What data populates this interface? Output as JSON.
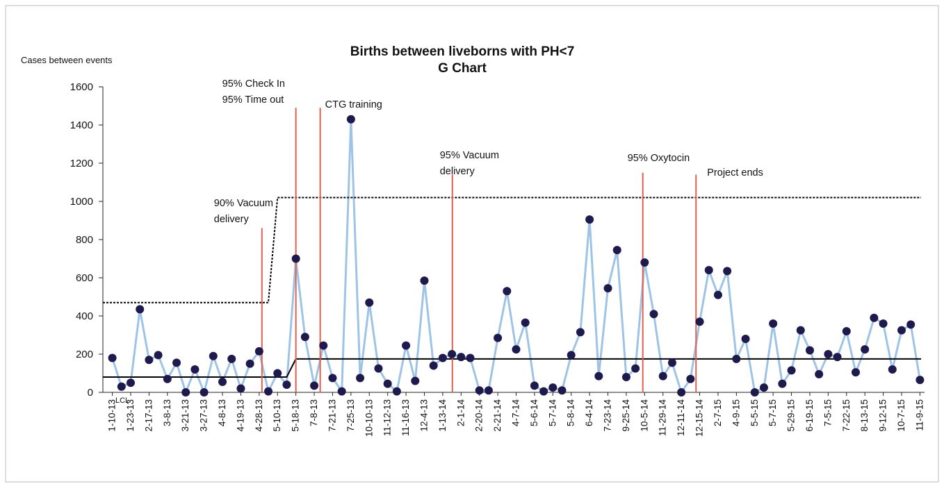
{
  "chart_data": {
    "type": "line",
    "title": [
      "Births between liveborns with PH<7",
      "G Chart"
    ],
    "y_axis_label": "Cases between events",
    "categories": [
      "1-10-13",
      null,
      "1-23-13",
      null,
      "2-17-13",
      null,
      "3-8-13",
      null,
      "3-21-13",
      null,
      "3-27-13",
      null,
      "4-8-13",
      null,
      "4-19-13",
      null,
      "4-28-13",
      null,
      "5-10-13",
      null,
      "5-18-13",
      null,
      "7-8-13",
      null,
      "7-21-13",
      null,
      "7-25-13",
      null,
      "10-10-13",
      null,
      "11-12-13",
      null,
      "11-16-13",
      null,
      "12-4-13",
      null,
      "1-13-14",
      null,
      "2-1-14",
      null,
      "2-20-14",
      null,
      "2-21-14",
      null,
      "4-7-14",
      null,
      "5-6-14",
      null,
      "5-7-14",
      null,
      "5-8-14",
      null,
      "6-4-14",
      null,
      "7-23-14",
      null,
      "9-25-14",
      null,
      "10-5-14",
      null,
      "11-29-14",
      null,
      "12-11-14",
      null,
      "12-15-14",
      null,
      "2-7-15",
      null,
      "4-9-15",
      null,
      "5-5-15",
      null,
      "5-7-15",
      null,
      "5-29-15",
      null,
      "6-19-15",
      null,
      "7-5-15",
      null,
      "7-22-15",
      null,
      "8-13-15",
      null,
      "9-12-15",
      null,
      "10-7-15",
      null,
      "11-9-15"
    ],
    "series": [
      {
        "color": "#9dc3e6",
        "marker_color": "#1f1a4d",
        "style": "markers",
        "values": [
          180,
          30,
          50,
          435,
          170,
          195,
          70,
          155,
          0,
          120,
          0,
          190,
          55,
          175,
          20,
          150,
          215,
          5,
          100,
          40,
          700,
          290,
          35,
          245,
          75,
          5,
          1430,
          75,
          470,
          125,
          45,
          5,
          245,
          60,
          585,
          140,
          180,
          200,
          185,
          180,
          10,
          10,
          285,
          530,
          225,
          365,
          35,
          5,
          25,
          10,
          195,
          315,
          905,
          85,
          545,
          745,
          80,
          125,
          680,
          410,
          85,
          155,
          0,
          70,
          370,
          640,
          510,
          635,
          175,
          280,
          0,
          25,
          360,
          45,
          115,
          325,
          220,
          95,
          200,
          185,
          320,
          105,
          225,
          390,
          360,
          120,
          325,
          355,
          65
        ]
      },
      {
        "color": "#000000",
        "style": "step",
        "values": [
          80,
          80,
          80,
          80,
          80,
          80,
          80,
          80,
          80,
          80,
          80,
          80,
          80,
          80,
          80,
          80,
          80,
          80,
          80,
          80,
          175,
          175,
          175,
          175,
          175,
          175,
          175,
          175,
          175,
          175,
          175,
          175,
          175,
          175,
          175,
          175,
          175,
          175,
          175,
          175,
          175,
          175,
          175,
          175,
          175,
          175,
          175,
          175,
          175,
          175,
          175,
          175,
          175,
          175,
          175,
          175,
          175,
          175,
          175,
          175,
          175,
          175,
          175,
          175,
          175,
          175,
          175,
          175,
          175,
          175,
          175,
          175,
          175,
          175,
          175,
          175,
          175,
          175,
          175,
          175,
          175,
          175,
          175,
          175,
          175,
          175,
          175,
          175,
          175
        ]
      },
      {
        "color": "#000000",
        "style": "dotted-step",
        "values": [
          470,
          470,
          470,
          470,
          470,
          470,
          470,
          470,
          470,
          470,
          470,
          470,
          470,
          470,
          470,
          470,
          470,
          470,
          1020,
          1020,
          1020,
          1020,
          1020,
          1020,
          1020,
          1020,
          1020,
          1020,
          1020,
          1020,
          1020,
          1020,
          1020,
          1020,
          1020,
          1020,
          1020,
          1020,
          1020,
          1020,
          1020,
          1020,
          1020,
          1020,
          1020,
          1020,
          1020,
          1020,
          1020,
          1020,
          1020,
          1020,
          1020,
          1020,
          1020,
          1020,
          1020,
          1020,
          1020,
          1020,
          1020,
          1020,
          1020,
          1020,
          1020,
          1020,
          1020,
          1020,
          1020,
          1020,
          1020,
          1020,
          1020,
          1020,
          1020,
          1020,
          1020,
          1020,
          1020,
          1020,
          1020,
          1020,
          1020,
          1020,
          1020,
          1020,
          1020,
          1020,
          1020
        ]
      }
    ],
    "lcl_label": "LCL",
    "events": [
      {
        "position": 16.3,
        "top": 860,
        "text": [
          "90% Vacuum",
          "delivery"
        ]
      },
      {
        "position": 20,
        "top": 1490,
        "text": [
          "95%  Check In",
          "95%  Time out"
        ]
      },
      {
        "position": 22.65,
        "top": 1490,
        "text": [
          "CTG training"
        ]
      },
      {
        "position": 37.05,
        "top": 1140,
        "text": [
          "95% Vacuum",
          "delivery"
        ]
      },
      {
        "position": 57.8,
        "top": 1150,
        "text": [
          "95% Oxytocin"
        ]
      },
      {
        "position": 63.6,
        "top": 1140,
        "text": [
          "Project ends"
        ]
      }
    ],
    "event_color": "#e0604f",
    "ylim": [
      0,
      1600
    ],
    "yticks": [
      0,
      200,
      400,
      600,
      800,
      1000,
      1200,
      1400,
      1600
    ],
    "grid": false
  }
}
